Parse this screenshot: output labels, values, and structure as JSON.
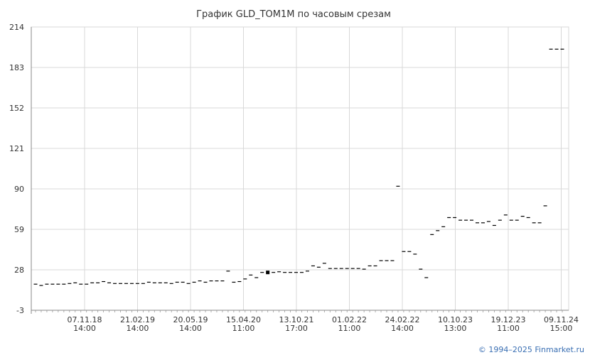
{
  "chart_data": {
    "type": "scatter",
    "title": "График GLD_TOM1M по часовым срезам",
    "xlabel": "",
    "ylabel": "",
    "ylim": [
      -3,
      214
    ],
    "y_ticks": [
      "214",
      "183",
      "152",
      "121",
      "90",
      "59",
      "28",
      "-3"
    ],
    "y_tick_values": [
      214,
      183,
      152,
      121,
      90,
      59,
      28,
      -3
    ],
    "x_ticks": [
      {
        "date": "07.11.18",
        "time": "14:00"
      },
      {
        "date": "21.02.19",
        "time": "14:00"
      },
      {
        "date": "20.05.19",
        "time": "14:00"
      },
      {
        "date": "15.04.20",
        "time": "11:00"
      },
      {
        "date": "13.10.21",
        "time": "17:00"
      },
      {
        "date": "01.02.22",
        "time": "11:00"
      },
      {
        "date": "24.02.22",
        "time": "14:00"
      },
      {
        "date": "10.10.23",
        "time": "13:00"
      },
      {
        "date": "19.12.23",
        "time": "11:00"
      },
      {
        "date": "09.11.24",
        "time": "15:00"
      }
    ],
    "grid": true,
    "values": [
      17,
      16,
      17,
      17,
      17,
      17,
      17.5,
      18,
      17,
      17,
      18,
      18,
      19,
      18,
      17.5,
      17.5,
      17.5,
      17.5,
      17.5,
      17.5,
      18.5,
      18,
      18,
      18,
      17.5,
      18.5,
      18.5,
      17.5,
      18.5,
      19.5,
      18.5,
      19.5,
      19.5,
      19.5,
      27,
      18.5,
      19,
      21,
      24,
      22,
      26,
      26,
      26,
      26.5,
      26,
      26,
      26,
      26,
      27,
      31,
      30,
      33,
      29,
      29,
      29,
      29,
      29,
      29,
      28.5,
      31,
      31,
      35,
      35,
      35,
      92,
      42,
      42,
      40,
      28.5,
      22,
      55,
      58,
      61,
      68,
      68,
      66,
      66,
      66,
      64,
      64,
      65,
      62,
      66,
      70,
      66,
      66,
      69,
      68,
      64,
      64,
      77,
      197,
      197,
      197
    ],
    "marker": "dash",
    "highlight_index": 41
  },
  "copyright": "© 1994–2025 Finmarket.ru"
}
